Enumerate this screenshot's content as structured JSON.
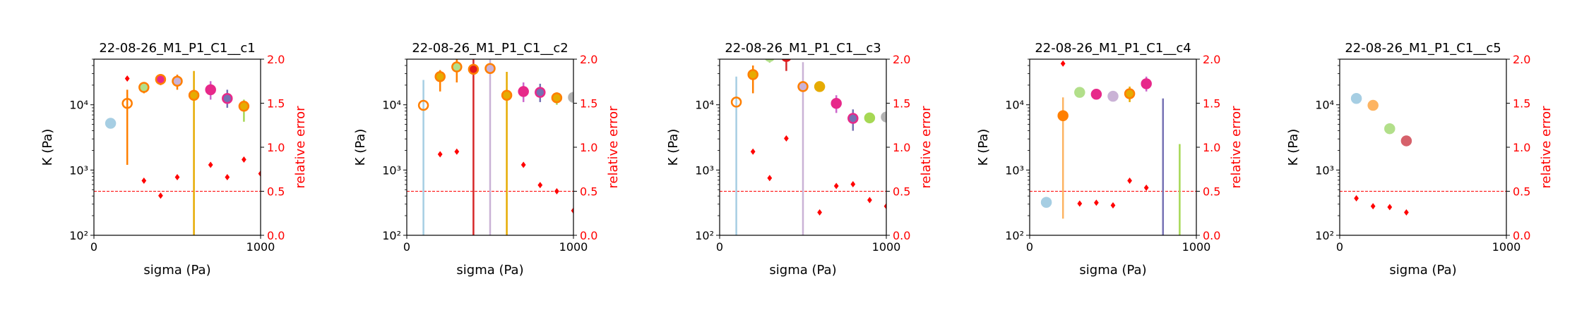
{
  "chart_data": [
    {
      "type": "scatter",
      "title": "22-08-26_M1_P1_C1__c1",
      "xlabel": "sigma (Pa)",
      "ylabel": "K (Pa)",
      "y2label": "relative error",
      "xlim": [
        0,
        1000
      ],
      "ylim": [
        100,
        50000
      ],
      "ylog": true,
      "y2lim": [
        0,
        2.0
      ],
      "xticks": [
        "0",
        "1000"
      ],
      "yticks": [
        {
          "v": 100,
          "label": "10²"
        },
        {
          "v": 1000,
          "label": "10³"
        },
        {
          "v": 10000,
          "label": "10⁴"
        }
      ],
      "y2ticks": [
        "0.0",
        "0.5",
        "1.0",
        "1.5",
        "2.0"
      ],
      "threshold": 0.5,
      "points": [
        {
          "x": 100,
          "y": 5200,
          "lo": 5200,
          "hi": 5200,
          "fill": "#a6cee3",
          "edge": "#a6cee3"
        },
        {
          "x": 200,
          "y": 10500,
          "lo": 1200,
          "hi": 17000,
          "fill": "#ff7f00",
          "edge": "#ff7f00",
          "hollow": true
        },
        {
          "x": 300,
          "y": 18500,
          "lo": 15000,
          "hi": 22000,
          "fill": "#b2df8a",
          "edge": "#ff7f00"
        },
        {
          "x": 400,
          "y": 24500,
          "lo": 20000,
          "hi": 29000,
          "fill": "#e7298a",
          "edge": "#ff7f00"
        },
        {
          "x": 500,
          "y": 23000,
          "lo": 17000,
          "hi": 29000,
          "fill": "#cab2d6",
          "edge": "#ff7f00"
        },
        {
          "x": 600,
          "y": 14000,
          "lo": 100,
          "hi": 33000,
          "fill": "#e6ab02",
          "edge": "#ff7f00",
          "bar": "#e6ab02"
        },
        {
          "x": 700,
          "y": 17000,
          "lo": 12000,
          "hi": 23000,
          "fill": "#e7298a",
          "edge": "#e7298a",
          "bar": "#cc66cc"
        },
        {
          "x": 800,
          "y": 12500,
          "lo": 9000,
          "hi": 17000,
          "fill": "#7570b3",
          "edge": "#e7298a",
          "bar": "#7570b3"
        },
        {
          "x": 900,
          "y": 9500,
          "lo": 5500,
          "hi": 12000,
          "fill": "#e6ab02",
          "edge": "#ff7f00",
          "bar": "#a6d854"
        }
      ],
      "rel_error": [
        {
          "x": 200,
          "y": 1.78
        },
        {
          "x": 300,
          "y": 0.62
        },
        {
          "x": 400,
          "y": 0.45
        },
        {
          "x": 500,
          "y": 0.66
        },
        {
          "x": 700,
          "y": 0.8
        },
        {
          "x": 800,
          "y": 0.66
        },
        {
          "x": 900,
          "y": 0.86
        },
        {
          "x": 1000,
          "y": 0.7
        }
      ]
    },
    {
      "type": "scatter",
      "title": "22-08-26_M1_P1_C1__c2",
      "xlabel": "sigma (Pa)",
      "ylabel": "K (Pa)",
      "y2label": "relative error",
      "xlim": [
        0,
        1000
      ],
      "ylim": [
        100,
        50000
      ],
      "ylog": true,
      "y2lim": [
        0,
        2.0
      ],
      "xticks": [
        "0",
        "1000"
      ],
      "yticks": [
        {
          "v": 100,
          "label": "10²"
        },
        {
          "v": 1000,
          "label": "10³"
        },
        {
          "v": 10000,
          "label": "10⁴"
        }
      ],
      "y2ticks": [
        "0.0",
        "0.5",
        "1.0",
        "1.5",
        "2.0"
      ],
      "threshold": 0.5,
      "points": [
        {
          "x": 100,
          "y": 9800,
          "lo": 100,
          "hi": 24000,
          "fill": "#a6cee3",
          "edge": "#ff7f00",
          "bar": "#a6cee3",
          "hollow": true
        },
        {
          "x": 200,
          "y": 27000,
          "lo": 16000,
          "hi": 34000,
          "fill": "#e6ab02",
          "edge": "#ff7f00",
          "bar": "#ff7f00"
        },
        {
          "x": 300,
          "y": 38000,
          "lo": 22000,
          "hi": 50000,
          "fill": "#b2df8a",
          "edge": "#ff7f00"
        },
        {
          "x": 400,
          "y": 35000,
          "lo": 100,
          "hi": 50000,
          "fill": "#e31a1c",
          "edge": "#ff7f00",
          "bar": "#d62728"
        },
        {
          "x": 500,
          "y": 36000,
          "lo": 100,
          "hi": 50000,
          "fill": "#cab2d6",
          "edge": "#ff7f00",
          "bar": "#cab2d6"
        },
        {
          "x": 600,
          "y": 14000,
          "lo": 100,
          "hi": 32000,
          "fill": "#e6ab02",
          "edge": "#ff7f00",
          "bar": "#e6ab02"
        },
        {
          "x": 700,
          "y": 16000,
          "lo": 11000,
          "hi": 22000,
          "fill": "#e7298a",
          "edge": "#e7298a",
          "bar": "#cc66cc"
        },
        {
          "x": 800,
          "y": 15500,
          "lo": 11000,
          "hi": 21000,
          "fill": "#7570b3",
          "edge": "#e7298a",
          "bar": "#7570b3"
        },
        {
          "x": 900,
          "y": 12800,
          "lo": 10000,
          "hi": 15500,
          "fill": "#e6ab02",
          "edge": "#ff7f00",
          "bar": "#a6d854"
        },
        {
          "x": 1000,
          "y": 13000,
          "lo": 12000,
          "hi": 14000,
          "fill": "#b3b3b3",
          "edge": "#b3b3b3"
        }
      ],
      "rel_error": [
        {
          "x": 200,
          "y": 0.92
        },
        {
          "x": 300,
          "y": 0.95
        },
        {
          "x": 700,
          "y": 0.8
        },
        {
          "x": 800,
          "y": 0.57
        },
        {
          "x": 900,
          "y": 0.5
        },
        {
          "x": 1000,
          "y": 0.28
        }
      ]
    },
    {
      "type": "scatter",
      "title": "22-08-26_M1_P1_C1__c3",
      "xlabel": "sigma (Pa)",
      "ylabel": "K (Pa)",
      "y2label": "relative error",
      "xlim": [
        0,
        1000
      ],
      "ylim": [
        100,
        50000
      ],
      "ylog": true,
      "y2lim": [
        0,
        2.0
      ],
      "xticks": [
        "0",
        "1000"
      ],
      "yticks": [
        {
          "v": 100,
          "label": "10²"
        },
        {
          "v": 1000,
          "label": "10³"
        },
        {
          "v": 10000,
          "label": "10⁴"
        }
      ],
      "y2ticks": [
        "0.0",
        "0.5",
        "1.0",
        "1.5",
        "2.0"
      ],
      "threshold": 0.5,
      "points": [
        {
          "x": 100,
          "y": 11000,
          "lo": 100,
          "hi": 27000,
          "fill": "#a6cee3",
          "edge": "#ff7f00",
          "bar": "#a6cee3",
          "hollow": true
        },
        {
          "x": 200,
          "y": 29000,
          "lo": 15000,
          "hi": 40000,
          "fill": "#e6ab02",
          "edge": "#ff7f00",
          "bar": "#ff7f00"
        },
        {
          "x": 300,
          "y": 55000,
          "lo": 44000,
          "hi": 60000,
          "fill": "#b2df8a",
          "edge": "#b2df8a"
        },
        {
          "x": 400,
          "y": 55000,
          "lo": 33000,
          "hi": 60000,
          "fill": "#e31a1c",
          "edge": "#e31a1c",
          "bar": "#d62728"
        },
        {
          "x": 500,
          "y": 19000,
          "lo": 100,
          "hi": 45000,
          "fill": "#cab2d6",
          "edge": "#ff7f00",
          "bar": "#cab2d6"
        },
        {
          "x": 600,
          "y": 19000,
          "lo": 18000,
          "hi": 20000,
          "fill": "#e6ab02",
          "edge": "#e6ab02"
        },
        {
          "x": 700,
          "y": 10500,
          "lo": 7500,
          "hi": 14000,
          "fill": "#e7298a",
          "edge": "#e7298a",
          "bar": "#cc66cc"
        },
        {
          "x": 800,
          "y": 6200,
          "lo": 4000,
          "hi": 8500,
          "fill": "#7570b3",
          "edge": "#e7298a",
          "bar": "#7570b3"
        },
        {
          "x": 900,
          "y": 6300,
          "lo": 5800,
          "hi": 6800,
          "fill": "#a6d854",
          "edge": "#a6d854"
        },
        {
          "x": 1000,
          "y": 6500,
          "lo": 6000,
          "hi": 7000,
          "fill": "#b3b3b3",
          "edge": "#b3b3b3"
        }
      ],
      "rel_error": [
        {
          "x": 200,
          "y": 0.95
        },
        {
          "x": 300,
          "y": 0.65
        },
        {
          "x": 400,
          "y": 1.1
        },
        {
          "x": 600,
          "y": 0.26
        },
        {
          "x": 700,
          "y": 0.56
        },
        {
          "x": 800,
          "y": 0.58
        },
        {
          "x": 900,
          "y": 0.4
        },
        {
          "x": 1000,
          "y": 0.33
        }
      ]
    },
    {
      "type": "scatter",
      "title": "22-08-26_M1_P1_C1__c4",
      "xlabel": "sigma (Pa)",
      "ylabel": "K (Pa)",
      "y2label": "relative error",
      "xlim": [
        0,
        1000
      ],
      "ylim": [
        100,
        50000
      ],
      "ylog": true,
      "y2lim": [
        0,
        2.0
      ],
      "xticks": [
        "0",
        "1000"
      ],
      "yticks": [
        {
          "v": 100,
          "label": "10²"
        },
        {
          "v": 1000,
          "label": "10³"
        },
        {
          "v": 10000,
          "label": "10⁴"
        }
      ],
      "y2ticks": [
        "0.0",
        "0.5",
        "1.0",
        "1.5",
        "2.0"
      ],
      "threshold": 0.5,
      "points": [
        {
          "x": 100,
          "y": 320,
          "lo": 320,
          "hi": 320,
          "fill": "#a6cee3",
          "edge": "#a6cee3"
        },
        {
          "x": 200,
          "y": 6800,
          "lo": 180,
          "hi": 13000,
          "fill": "#ff7f00",
          "edge": "#ff7f00",
          "bar": "#fdb462"
        },
        {
          "x": 300,
          "y": 15500,
          "lo": 14500,
          "hi": 16500,
          "fill": "#b2df8a",
          "edge": "#b2df8a"
        },
        {
          "x": 400,
          "y": 14500,
          "lo": 13500,
          "hi": 15500,
          "fill": "#e7298a",
          "edge": "#e7298a"
        },
        {
          "x": 500,
          "y": 13500,
          "lo": 12500,
          "hi": 14500,
          "fill": "#cab2d6",
          "edge": "#cab2d6"
        },
        {
          "x": 600,
          "y": 14800,
          "lo": 11000,
          "hi": 19000,
          "fill": "#e6ab02",
          "edge": "#ff7f00",
          "bar": "#e6ab02"
        },
        {
          "x": 700,
          "y": 21000,
          "lo": 16000,
          "hi": 27000,
          "fill": "#e7298a",
          "edge": "#e7298a",
          "bar": "#cc66cc"
        },
        {
          "x": 800,
          "y": 11000,
          "lo": 100,
          "hi": 12500,
          "fill": "none",
          "edge": "none",
          "bar": "#7570b3",
          "nomarker": true
        },
        {
          "x": 900,
          "y": 2500,
          "lo": 100,
          "hi": 2500,
          "fill": "none",
          "edge": "none",
          "bar": "#a6d854",
          "nomarker": true
        }
      ],
      "rel_error": [
        {
          "x": 200,
          "y": 1.95
        },
        {
          "x": 300,
          "y": 0.36
        },
        {
          "x": 400,
          "y": 0.37
        },
        {
          "x": 500,
          "y": 0.34
        },
        {
          "x": 600,
          "y": 0.62
        },
        {
          "x": 700,
          "y": 0.54
        }
      ]
    },
    {
      "type": "scatter",
      "title": "22-08-26_M1_P1_C1__c5",
      "xlabel": "sigma (Pa)",
      "ylabel": "K (Pa)",
      "y2label": "relative error",
      "xlim": [
        0,
        1000
      ],
      "ylim": [
        100,
        50000
      ],
      "ylog": true,
      "y2lim": [
        0,
        2.0
      ],
      "xticks": [
        "0",
        "1000"
      ],
      "yticks": [
        {
          "v": 100,
          "label": "10²"
        },
        {
          "v": 1000,
          "label": "10³"
        },
        {
          "v": 10000,
          "label": "10⁴"
        }
      ],
      "y2ticks": [
        "0.0",
        "0.5",
        "1.0",
        "1.5",
        "2.0"
      ],
      "threshold": 0.5,
      "points": [
        {
          "x": 100,
          "y": 12500,
          "lo": 11500,
          "hi": 13500,
          "fill": "#a6cee3",
          "edge": "#a6cee3"
        },
        {
          "x": 200,
          "y": 9800,
          "lo": 9300,
          "hi": 10300,
          "fill": "#fdb462",
          "edge": "#fdb462"
        },
        {
          "x": 300,
          "y": 4300,
          "lo": 4100,
          "hi": 4500,
          "fill": "#b2df8a",
          "edge": "#b2df8a"
        },
        {
          "x": 400,
          "y": 2800,
          "lo": 2700,
          "hi": 2900,
          "fill": "#d6616b",
          "edge": "#d6616b"
        }
      ],
      "rel_error": [
        {
          "x": 100,
          "y": 0.42
        },
        {
          "x": 200,
          "y": 0.33
        },
        {
          "x": 300,
          "y": 0.32
        },
        {
          "x": 400,
          "y": 0.26
        }
      ]
    }
  ]
}
